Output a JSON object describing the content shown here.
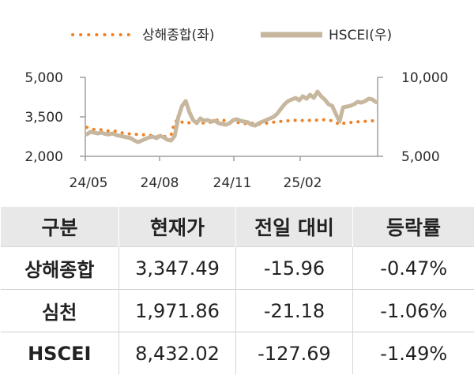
{
  "legend": {
    "series1": "상해종합(좌)",
    "series2": "HSCEI(우)"
  },
  "colors": {
    "shanghai": "#F08226",
    "hscei": "#C6B79E",
    "table_header_bg": "#E8E8E8"
  },
  "chart_data": {
    "type": "line",
    "x_tick_labels": [
      "24/05",
      "24/08",
      "24/11",
      "25/02"
    ],
    "y_left": {
      "ticks": [
        "5,000",
        "3,500",
        "2,000"
      ],
      "range": [
        2000,
        5000
      ]
    },
    "y_right": {
      "ticks": [
        "10,000",
        "5,000"
      ],
      "range": [
        5000,
        10000
      ]
    },
    "series": [
      {
        "name": "상해종합(좌)",
        "axis": "left",
        "style": "dotted",
        "values": [
          3100,
          3060,
          3020,
          3000,
          3010,
          2990,
          2960,
          2970,
          2950,
          2920,
          2880,
          2860,
          2850,
          2850,
          2820,
          2810,
          2830,
          2800,
          2780,
          2760,
          2750,
          2740,
          2780,
          2820,
          3300,
          3400,
          3300,
          3250,
          3280,
          3300,
          3320,
          3300,
          3260,
          3280,
          3300,
          3350,
          3400,
          3380,
          3340,
          3320,
          3300,
          3280,
          3290,
          3250,
          3230,
          3260,
          3240,
          3220,
          3250,
          3260,
          3280,
          3300,
          3320,
          3330,
          3340,
          3350,
          3360,
          3370,
          3380,
          3360,
          3350,
          3370,
          3360,
          3380,
          3400,
          3390,
          3380,
          3350,
          3300,
          3200,
          3250,
          3280,
          3290,
          3300,
          3310,
          3320,
          3330,
          3340,
          3350,
          3347
        ]
      },
      {
        "name": "HSCEI(우)",
        "axis": "right",
        "style": "solid",
        "values": [
          6400,
          6550,
          6500,
          6450,
          6500,
          6420,
          6380,
          6450,
          6350,
          6300,
          6250,
          6200,
          6150,
          6000,
          5900,
          6000,
          6100,
          6200,
          6250,
          6150,
          6300,
          6200,
          6050,
          6000,
          6300,
          7500,
          8200,
          8500,
          7800,
          7300,
          7100,
          7400,
          7250,
          7300,
          7200,
          7250,
          7100,
          7050,
          7000,
          7100,
          7300,
          7350,
          7250,
          7200,
          7150,
          7000,
          6950,
          7100,
          7200,
          7300,
          7400,
          7500,
          7700,
          8000,
          8300,
          8500,
          8600,
          8700,
          8550,
          8800,
          8650,
          8900,
          8700,
          9100,
          8800,
          8600,
          8300,
          8200,
          7700,
          7200,
          8100,
          8150,
          8200,
          8300,
          8450,
          8400,
          8500,
          8650,
          8600,
          8432
        ]
      }
    ],
    "grid": false,
    "legend_position": "top"
  },
  "table": {
    "headers": [
      "구분",
      "현재가",
      "전일 대비",
      "등락률"
    ],
    "rows": [
      [
        "상해종합",
        "3,347.49",
        "-15.96",
        "-0.47%"
      ],
      [
        "심천",
        "1,971.86",
        "-21.18",
        "-1.06%"
      ],
      [
        "HSCEI",
        "8,432.02",
        "-127.69",
        "-1.49%"
      ]
    ]
  }
}
